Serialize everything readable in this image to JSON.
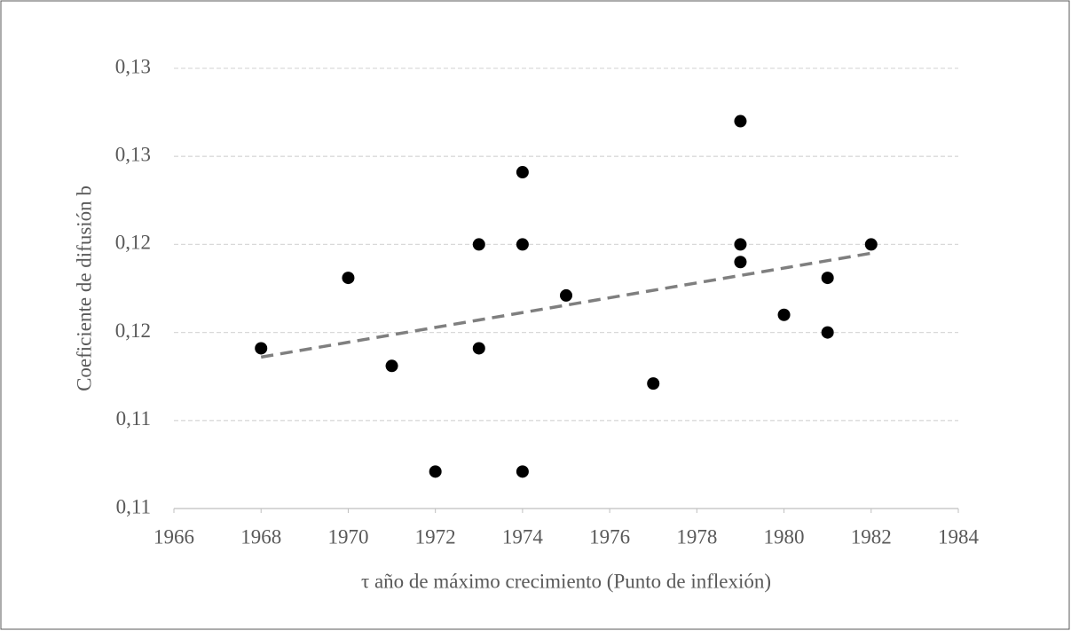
{
  "chart_data": {
    "type": "scatter",
    "xlabel": "τ año de máximo crecimiento (Punto de inflexión)",
    "ylabel": "Coeficiente de difusión b",
    "x": [
      1968,
      1970,
      1971,
      1972,
      1973,
      1973,
      1974,
      1974,
      1974,
      1975,
      1977,
      1979,
      1979,
      1979,
      1980,
      1981,
      1981,
      1982
    ],
    "values": [
      0.1141,
      0.1181,
      0.1131,
      0.1071,
      0.12,
      0.1141,
      0.1241,
      0.12,
      0.1071,
      0.1171,
      0.1121,
      0.127,
      0.12,
      0.119,
      0.116,
      0.1181,
      0.115,
      0.12
    ],
    "color": "#000000",
    "trendline": {
      "x": [
        1968,
        1982
      ],
      "values": [
        0.1136,
        0.1195
      ],
      "color": "#7f7f7f"
    },
    "xlim": [
      1966,
      1984
    ],
    "xticks": [
      1966,
      1968,
      1970,
      1972,
      1974,
      1976,
      1978,
      1980,
      1982,
      1984
    ],
    "ylim": [
      0.105,
      0.13
    ],
    "yticks": [
      {
        "value": 0.105,
        "label": "0,11"
      },
      {
        "value": 0.11,
        "label": "0,11"
      },
      {
        "value": 0.115,
        "label": "0,12"
      },
      {
        "value": 0.12,
        "label": "0,12"
      },
      {
        "value": 0.125,
        "label": "0,13"
      },
      {
        "value": 0.13,
        "label": "0,13"
      }
    ],
    "grid": true
  }
}
